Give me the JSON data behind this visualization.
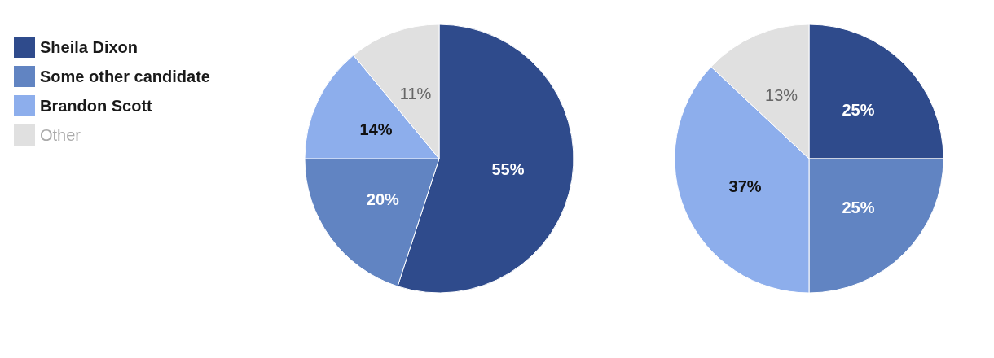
{
  "chart_data": [
    {
      "type": "pie",
      "categories": [
        "Sheila Dixon",
        "Some other candidate",
        "Brandon Scott",
        "Other"
      ],
      "values": [
        55,
        20,
        14,
        11
      ],
      "colors": [
        "#2f4b8c",
        "#6184c2",
        "#8daeec",
        "#e0e0e0"
      ],
      "value_labels": [
        "55%",
        "20%",
        "14%",
        "11%"
      ],
      "legend": "left"
    },
    {
      "type": "pie",
      "categories": [
        null,
        null,
        null,
        null
      ],
      "values": [
        25,
        25,
        37,
        13
      ],
      "colors": [
        "#2f4b8c",
        "#6184c2",
        "#8daeec",
        "#e0e0e0"
      ],
      "value_labels": [
        "25%",
        "25%",
        "37%",
        "13%"
      ]
    }
  ]
}
